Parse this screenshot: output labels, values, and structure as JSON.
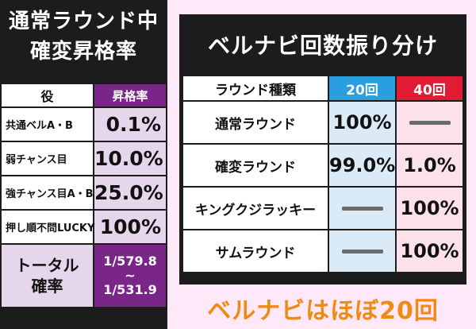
{
  "left": {
    "title_line1": "通常ラウンド中",
    "title_line2": "確変昇格率",
    "headers": {
      "role": "役",
      "rate": "昇格率"
    },
    "rows": [
      {
        "role": "共通ベルA・B",
        "rate": "0.1%"
      },
      {
        "role": "弱チャンス目",
        "rate": "10.0%"
      },
      {
        "role": "強チャンス目A・B",
        "rate": "25.0%"
      },
      {
        "role": "押し順不問LUCKY",
        "rate": "100%"
      }
    ],
    "total": {
      "label_line1": "トータル",
      "label_line2": "確率",
      "value_line1": "1/579.8",
      "value_line2": "~",
      "value_line3": "1/531.9"
    }
  },
  "right": {
    "title": "ベルナビ回数振り分け",
    "headers": {
      "kind": "ラウンド種類",
      "col20": "20回",
      "col40": "40回"
    },
    "rows": [
      {
        "kind": "通常ラウンド",
        "v20": "100%",
        "v40": ""
      },
      {
        "kind": "確変ラウンド",
        "v20": "99.0%",
        "v40": "1.0%"
      },
      {
        "kind": "キングクジラッキー",
        "v20": "",
        "v40": "100%"
      },
      {
        "kind": "サムラウンド",
        "v20": "",
        "v40": "100%"
      }
    ],
    "footer": "ベルナビはほぼ20回"
  },
  "colors": {
    "panel_bg": "#1c1c1c",
    "purple": "#7a2688",
    "light_purple": "#e6d6ec",
    "blue": "#2a9fe0",
    "red": "#e01b33",
    "light_blue": "#daeaf6",
    "light_pink": "#fde1ea",
    "orange": "#f08a14",
    "page_bg": "#ffe8f7"
  },
  "icons": {
    "dash": "dash-icon"
  }
}
